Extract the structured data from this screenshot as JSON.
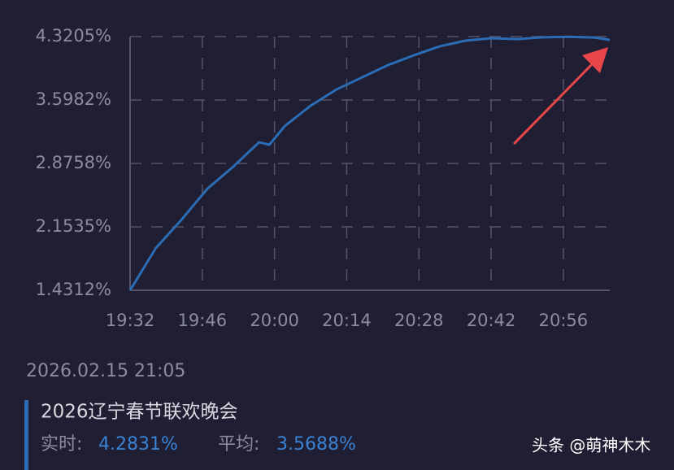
{
  "chart_data": {
    "type": "line",
    "x": [
      "19:32",
      "19:37",
      "19:42",
      "19:47",
      "19:52",
      "19:57",
      "19:59",
      "20:02",
      "20:07",
      "20:12",
      "20:17",
      "20:22",
      "20:27",
      "20:32",
      "20:37",
      "20:42",
      "20:47",
      "20:52",
      "20:57",
      "21:02",
      "21:05"
    ],
    "series": [
      {
        "name": "2026辽宁春节联欢晚会",
        "color": "#2b6cb5",
        "values": [
          1.4312,
          1.913,
          2.237,
          2.589,
          2.839,
          3.117,
          3.089,
          3.302,
          3.533,
          3.718,
          3.857,
          3.996,
          4.107,
          4.209,
          4.274,
          4.302,
          4.292,
          4.312,
          4.318,
          4.31,
          4.2831
        ]
      }
    ],
    "xlim": [
      "19:32",
      "21:05"
    ],
    "xticks": [
      "19:32",
      "19:46",
      "20:00",
      "20:14",
      "20:28",
      "20:42",
      "20:56"
    ],
    "ylim": [
      1.4312,
      4.3205
    ],
    "yticks": [
      {
        "value": 1.4312,
        "label": "1.4312%"
      },
      {
        "value": 2.1535,
        "label": "2.1535%"
      },
      {
        "value": 2.8758,
        "label": "2.8758%"
      },
      {
        "value": 3.5982,
        "label": "3.5982%"
      },
      {
        "value": 4.3205,
        "label": "4.3205%"
      }
    ],
    "grid": true
  },
  "info": {
    "timestamp": "2026.02.15 21:05",
    "current_label": "实时:",
    "current": "4.2831%",
    "average_label": "平均:",
    "average": "3.5688%"
  },
  "watermark": "头条 @萌神木木"
}
